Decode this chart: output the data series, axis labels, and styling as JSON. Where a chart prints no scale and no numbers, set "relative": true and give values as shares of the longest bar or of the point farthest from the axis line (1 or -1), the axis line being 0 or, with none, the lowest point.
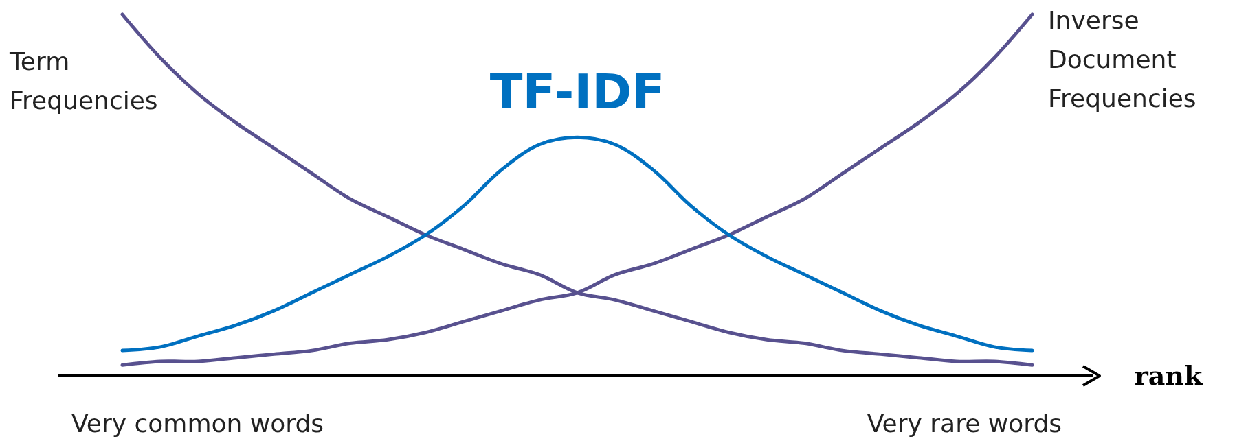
{
  "chart_data": {
    "type": "line",
    "relative": true,
    "xlabel": "rank",
    "categories": [
      null,
      null,
      null,
      null,
      null,
      null,
      null,
      null,
      null,
      null,
      null,
      null,
      null,
      null,
      null,
      null,
      null,
      null,
      null,
      null,
      null,
      null,
      null,
      null,
      null
    ],
    "series": [
      {
        "name": "Term Frequencies",
        "color": "#58518f",
        "values": [
          1.0,
          0.88,
          0.78,
          0.7,
          0.63,
          0.56,
          0.49,
          0.44,
          0.39,
          0.35,
          0.31,
          0.28,
          0.23,
          0.21,
          0.18,
          0.15,
          0.12,
          0.1,
          0.09,
          0.07,
          0.06,
          0.05,
          0.04,
          0.04,
          0.03
        ]
      },
      {
        "name": "Inverse Document Frequencies",
        "color": "#58518f",
        "values": [
          0.03,
          0.04,
          0.04,
          0.05,
          0.06,
          0.07,
          0.09,
          0.1,
          0.12,
          0.15,
          0.18,
          0.21,
          0.23,
          0.28,
          0.31,
          0.35,
          0.39,
          0.44,
          0.49,
          0.56,
          0.63,
          0.7,
          0.78,
          0.88,
          1.0
        ]
      },
      {
        "name": "TF-IDF",
        "color": "#0070c0",
        "values": [
          0.07,
          0.08,
          0.11,
          0.14,
          0.18,
          0.23,
          0.28,
          0.33,
          0.39,
          0.47,
          0.57,
          0.64,
          0.66,
          0.64,
          0.57,
          0.47,
          0.39,
          0.33,
          0.28,
          0.23,
          0.18,
          0.14,
          0.11,
          0.08,
          0.07
        ]
      }
    ],
    "annotations": [
      "Very common words",
      "Very rare words"
    ],
    "marker": "none",
    "line_style": "solid",
    "legend": false
  }
}
